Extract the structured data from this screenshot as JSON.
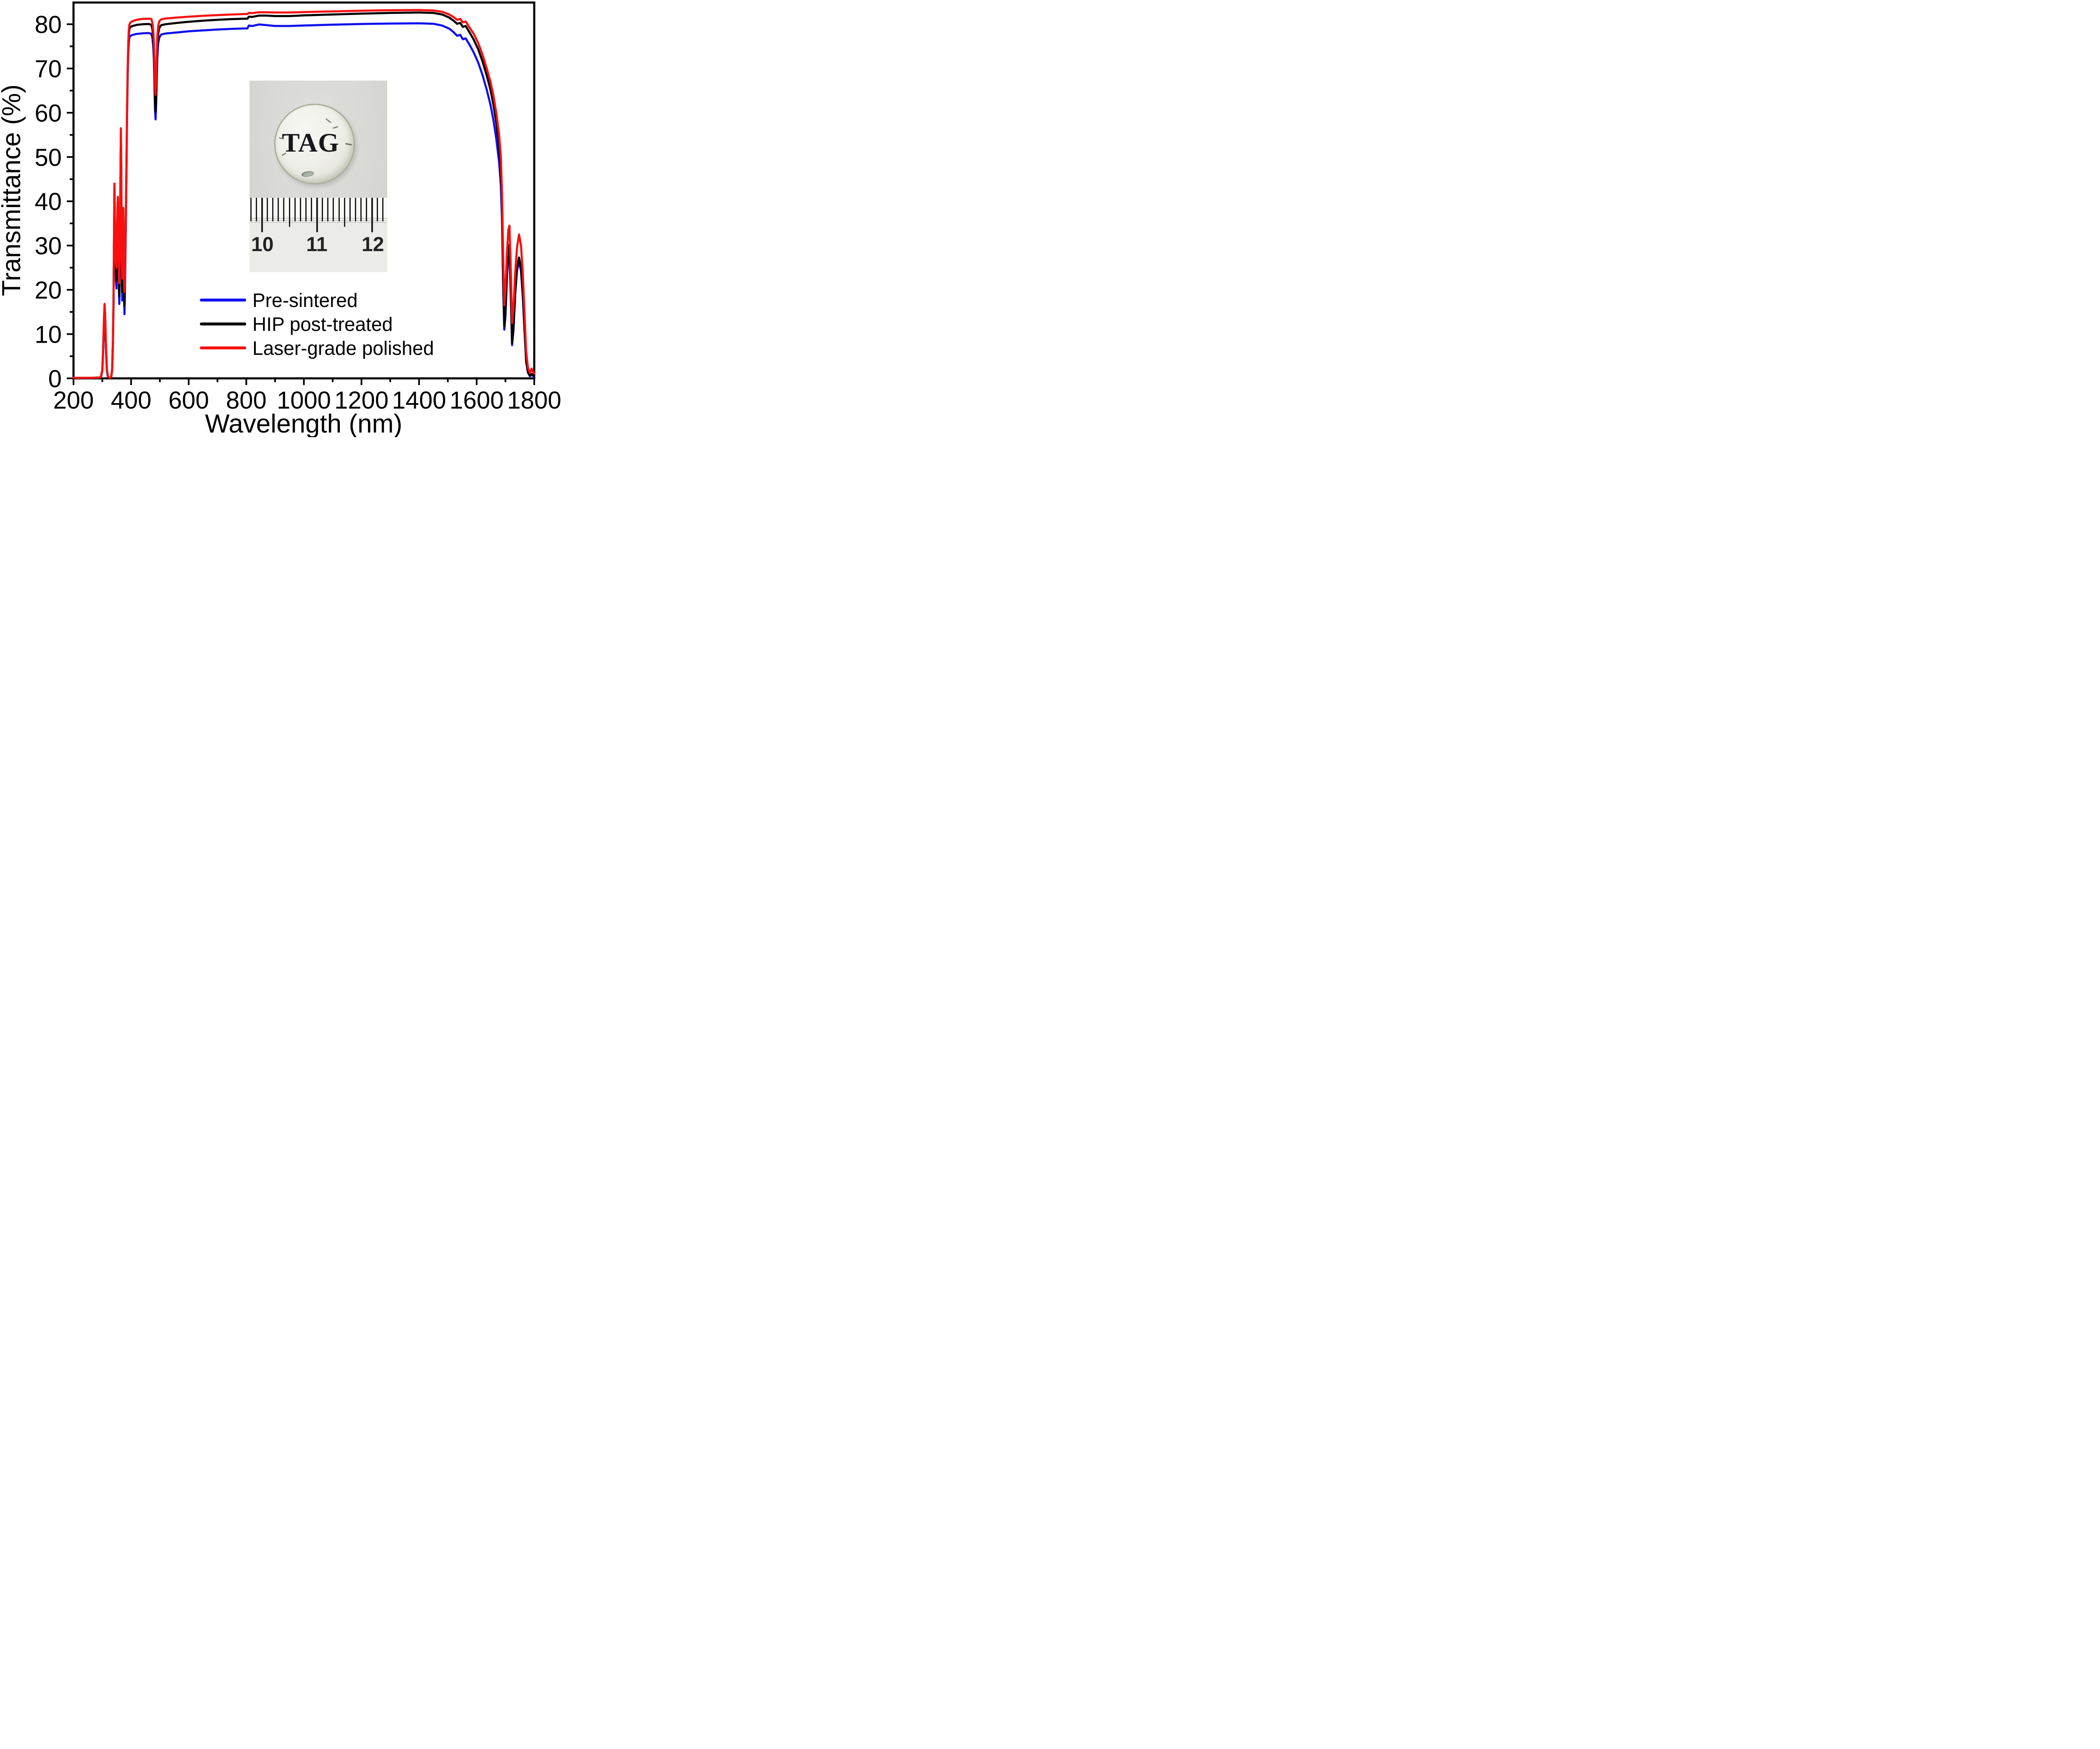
{
  "chart_data": {
    "type": "line",
    "title": "",
    "xlabel": "Wavelength (nm)",
    "ylabel": "Transmittance (%)",
    "xlim": [
      200,
      1800
    ],
    "ylim": [
      0,
      84.9
    ],
    "grid": false,
    "legend_position": "inside lower-center",
    "x_ticks_major": [
      200,
      400,
      600,
      800,
      1000,
      1200,
      1400,
      1600,
      1800
    ],
    "x_ticks_minor": [
      300,
      500,
      700,
      900,
      1100,
      1300,
      1500,
      1700
    ],
    "y_ticks_major": [
      0,
      10,
      20,
      30,
      40,
      50,
      60,
      70,
      80
    ],
    "y_ticks_minor": [
      5,
      15,
      25,
      35,
      45,
      55,
      65,
      75
    ],
    "x": [
      200,
      260,
      292,
      296,
      300,
      303,
      306,
      308,
      310,
      313,
      316,
      319,
      322,
      327,
      331,
      334,
      337,
      339,
      341,
      342,
      344,
      346,
      348,
      349.5,
      351,
      353,
      354.5,
      356,
      358,
      359,
      361,
      363,
      364.5,
      366,
      367.5,
      369,
      370.5,
      372,
      373,
      374.5,
      376,
      377,
      378.5,
      380,
      382,
      384,
      386,
      388,
      390,
      392,
      394,
      398,
      405,
      420,
      440,
      460,
      470,
      474,
      477,
      479,
      481,
      483,
      485,
      487,
      489,
      491,
      494,
      498,
      505,
      520,
      560,
      600,
      650,
      700,
      750,
      795,
      804,
      809,
      820,
      845,
      870,
      900,
      950,
      1000,
      1100,
      1200,
      1300,
      1400,
      1450,
      1480,
      1505,
      1520,
      1532,
      1543,
      1552,
      1562,
      1575,
      1590,
      1605,
      1620,
      1635,
      1648,
      1658,
      1668,
      1678,
      1684,
      1688,
      1692,
      1696,
      1700,
      1705,
      1710,
      1714,
      1718,
      1723,
      1728,
      1734,
      1740,
      1747,
      1754,
      1760,
      1766,
      1772,
      1778,
      1785,
      1791,
      1796,
      1800
    ],
    "series": [
      {
        "name": "Pre-sintered",
        "color": "#1010f0",
        "values": [
          0.1,
          0.1,
          0.2,
          0.5,
          1.7,
          6.2,
          12.7,
          15.0,
          12.7,
          6.1,
          1.8,
          0.5,
          0.2,
          0.1,
          0.3,
          1.7,
          8.0,
          17,
          34,
          42.4,
          34.8,
          25.3,
          21.5,
          20.3,
          27.8,
          37.6,
          39.3,
          30.8,
          19.5,
          16.8,
          24.8,
          43.8,
          54.8,
          45,
          24.8,
          17.6,
          25.8,
          35.5,
          36.7,
          26.5,
          16.5,
          14.5,
          19.5,
          26.3,
          36.8,
          48,
          59,
          68,
          73.3,
          75.8,
          77.0,
          77.4,
          77.6,
          77.8,
          77.95,
          78.0,
          77.85,
          76.9,
          74.9,
          72.2,
          67.0,
          60.8,
          58.5,
          61.8,
          67.5,
          72.3,
          75.6,
          77.0,
          77.7,
          77.9,
          78.15,
          78.4,
          78.6,
          78.8,
          78.95,
          79.05,
          79.05,
          79.7,
          79.6,
          79.95,
          79.8,
          79.6,
          79.6,
          79.7,
          79.9,
          80.05,
          80.15,
          80.2,
          80.1,
          79.7,
          79.0,
          78.2,
          77.4,
          77.6,
          76.6,
          76.8,
          75.4,
          73.6,
          71.4,
          68.6,
          65.2,
          61.8,
          58.5,
          54.2,
          48.8,
          43.5,
          36.0,
          21,
          11.0,
          14,
          22.5,
          28,
          29.2,
          20,
          7.5,
          11,
          19,
          24.3,
          26.5,
          24.2,
          18.8,
          11,
          3.7,
          1.3,
          0.5,
          0.8,
          0.55,
          0.4
        ]
      },
      {
        "name": "HIP post-treated",
        "color": "#000000",
        "values": [
          0.1,
          0.1,
          0.2,
          0.5,
          1.8,
          6.5,
          13,
          15.3,
          13,
          6.3,
          1.9,
          0.5,
          0.2,
          0.1,
          0.3,
          1.8,
          8.2,
          17.5,
          34.5,
          43.0,
          35.5,
          26.5,
          23,
          22,
          29,
          38.3,
          40,
          32,
          21,
          18.5,
          26,
          44.5,
          55.5,
          46,
          26.5,
          19.5,
          27,
          36.3,
          37.4,
          28,
          18.5,
          16.5,
          21,
          27.5,
          37.8,
          49,
          60,
          69,
          74.5,
          77.6,
          78.9,
          79.4,
          79.6,
          79.85,
          80.0,
          80.05,
          79.9,
          78.9,
          76.8,
          74.0,
          68.8,
          62.5,
          60.2,
          63.5,
          69.5,
          74.5,
          77.8,
          79.2,
          79.8,
          80.0,
          80.3,
          80.55,
          80.8,
          81.0,
          81.15,
          81.25,
          81.25,
          81.7,
          81.65,
          81.95,
          81.95,
          81.85,
          81.85,
          82.0,
          82.2,
          82.4,
          82.55,
          82.65,
          82.55,
          82.2,
          81.5,
          80.8,
          80.1,
          80.3,
          79.4,
          79.6,
          78.2,
          76.5,
          74.4,
          71.7,
          68.4,
          65.2,
          62.0,
          57.8,
          52.5,
          47.0,
          39.0,
          22,
          11.8,
          15,
          23.5,
          29,
          30.2,
          21,
          8.0,
          11.5,
          19.5,
          25,
          27.3,
          25,
          19.5,
          11.5,
          4,
          1.5,
          0.6,
          1.0,
          0.7,
          0.5
        ]
      },
      {
        "name": "Laser-grade polished",
        "color": "#f81010",
        "values": [
          0.1,
          0.1,
          0.2,
          0.6,
          2,
          7,
          14,
          16.8,
          14.5,
          7,
          2.2,
          0.6,
          0.2,
          0.1,
          0.4,
          2,
          9,
          19,
          36,
          44,
          37,
          28.5,
          25.5,
          25,
          31,
          39.5,
          41,
          34,
          23.5,
          21.5,
          28,
          46,
          56.5,
          48,
          29,
          22.5,
          29,
          37.5,
          38.5,
          30,
          21,
          19.5,
          23,
          29,
          39,
          50,
          61,
          70,
          75.5,
          78.6,
          79.9,
          80.4,
          80.7,
          81.0,
          81.2,
          81.25,
          81.2,
          80.3,
          78.5,
          76.2,
          71.5,
          66.3,
          64.0,
          67.5,
          72.5,
          77.0,
          79.6,
          80.7,
          81.1,
          81.3,
          81.5,
          81.7,
          81.9,
          82.05,
          82.2,
          82.3,
          82.3,
          82.55,
          82.5,
          82.7,
          82.7,
          82.65,
          82.65,
          82.75,
          82.9,
          83.05,
          83.15,
          83.2,
          83.1,
          82.8,
          82.2,
          81.6,
          81.0,
          81.2,
          80.4,
          80.6,
          79.3,
          77.8,
          75.8,
          73.2,
          70.0,
          67.0,
          64.0,
          60.0,
          55.0,
          50.0,
          42.0,
          28,
          16.5,
          20,
          28,
          33.5,
          34.5,
          26,
          12.5,
          16,
          24,
          29.5,
          32.5,
          30,
          24,
          15,
          6,
          2.5,
          1.2,
          2.2,
          1.4,
          1.1
        ]
      }
    ]
  },
  "inset": {
    "disc_label": "TAG",
    "ruler": {
      "labels": [
        "10",
        "11",
        "12"
      ],
      "mm_start": -2,
      "mm_end": 22
    }
  }
}
